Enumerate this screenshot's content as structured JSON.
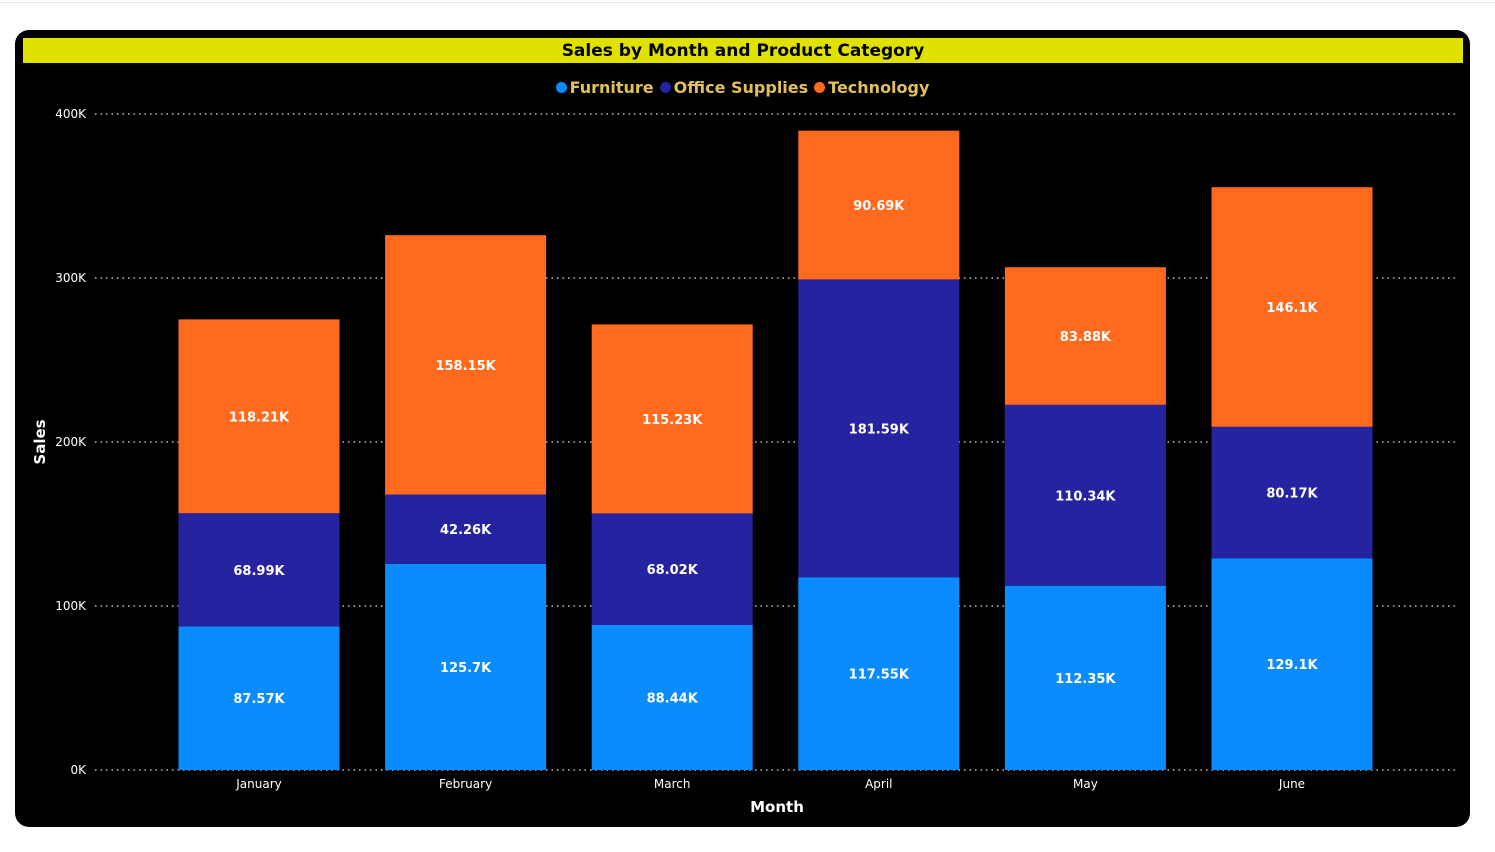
{
  "chart_data": {
    "type": "bar",
    "stacked": true,
    "title": "Sales by Month and Product Category",
    "xlabel": "Month",
    "ylabel": "Sales",
    "categories": [
      "January",
      "February",
      "March",
      "April",
      "May",
      "June"
    ],
    "series": [
      {
        "name": "Furniture",
        "color": "#0a8cff",
        "values": [
          87.57,
          125.7,
          88.44,
          117.55,
          112.35,
          129.1
        ],
        "labels": [
          "87.57K",
          "125.7K",
          "88.44K",
          "117.55K",
          "112.35K",
          "129.1K"
        ]
      },
      {
        "name": "Office Supplies",
        "color": "#2623a0",
        "values": [
          68.99,
          42.26,
          68.02,
          181.59,
          110.34,
          80.17
        ],
        "labels": [
          "68.99K",
          "42.26K",
          "68.02K",
          "181.59K",
          "110.34K",
          "80.17K"
        ]
      },
      {
        "name": "Technology",
        "color": "#ff6a1f",
        "values": [
          118.21,
          158.15,
          115.23,
          90.69,
          83.88,
          146.1
        ],
        "labels": [
          "118.21K",
          "158.15K",
          "115.23K",
          "90.69K",
          "83.88K",
          "146.1K"
        ]
      }
    ],
    "ylim": [
      0,
      400
    ],
    "yticks": [
      0,
      100,
      200,
      300,
      400
    ],
    "ytick_labels": [
      "0K",
      "100K",
      "200K",
      "300K",
      "400K"
    ],
    "grid": true,
    "legend": "top-center",
    "colors": {
      "title_bar": "#e1e100",
      "background": "#000000",
      "legend_text": "#e2c15a"
    }
  }
}
